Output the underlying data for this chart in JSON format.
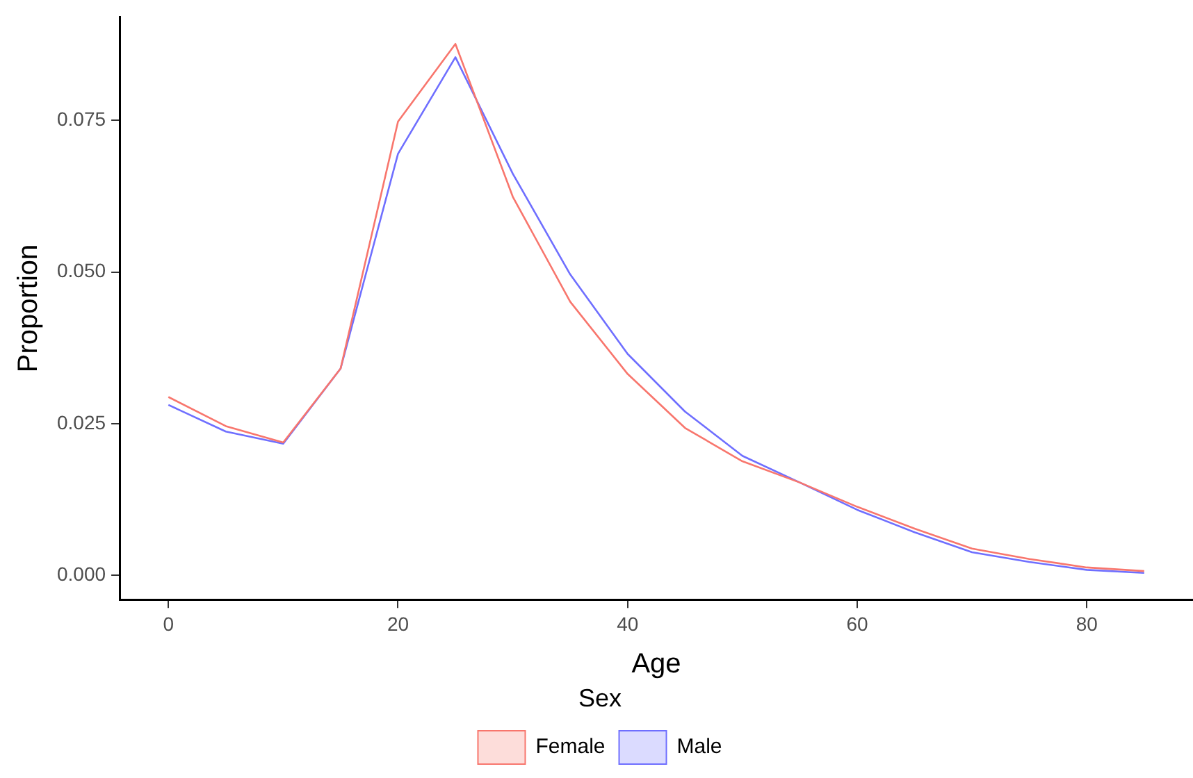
{
  "chart_data": {
    "type": "line",
    "xlabel": "Age",
    "ylabel": "Proportion",
    "legend_title": "Sex",
    "legend": "bottom",
    "grid": false,
    "marker": "none",
    "line_style": "solid",
    "x": [
      0,
      5,
      10,
      15,
      20,
      25,
      30,
      35,
      40,
      45,
      50,
      55,
      60,
      65,
      70,
      75,
      80,
      85
    ],
    "xlim": [
      -4.25,
      89.25
    ],
    "xticks": [
      0,
      20,
      40,
      60,
      80
    ],
    "ylim": [
      -0.004,
      0.092
    ],
    "yticks": [
      {
        "value": 0,
        "label": "0.000"
      },
      {
        "value": 0.025,
        "label": "0.025"
      },
      {
        "value": 0.05,
        "label": "0.050"
      },
      {
        "value": 0.075,
        "label": "0.075"
      }
    ],
    "series": [
      {
        "name": "Female",
        "color": "#f8766d",
        "values": [
          0.0294,
          0.0246,
          0.0219,
          0.0341,
          0.0748,
          0.0876,
          0.0624,
          0.0451,
          0.0332,
          0.0243,
          0.0188,
          0.0153,
          0.0113,
          0.0077,
          0.0044,
          0.0027,
          0.0013,
          0.0007
        ]
      },
      {
        "name": "Male",
        "color": "#6f6fff",
        "values": [
          0.0281,
          0.0237,
          0.0217,
          0.0341,
          0.0695,
          0.0854,
          0.0662,
          0.0496,
          0.0365,
          0.027,
          0.0197,
          0.0153,
          0.0108,
          0.0071,
          0.0038,
          0.0022,
          0.0009,
          0.0004
        ]
      }
    ]
  }
}
